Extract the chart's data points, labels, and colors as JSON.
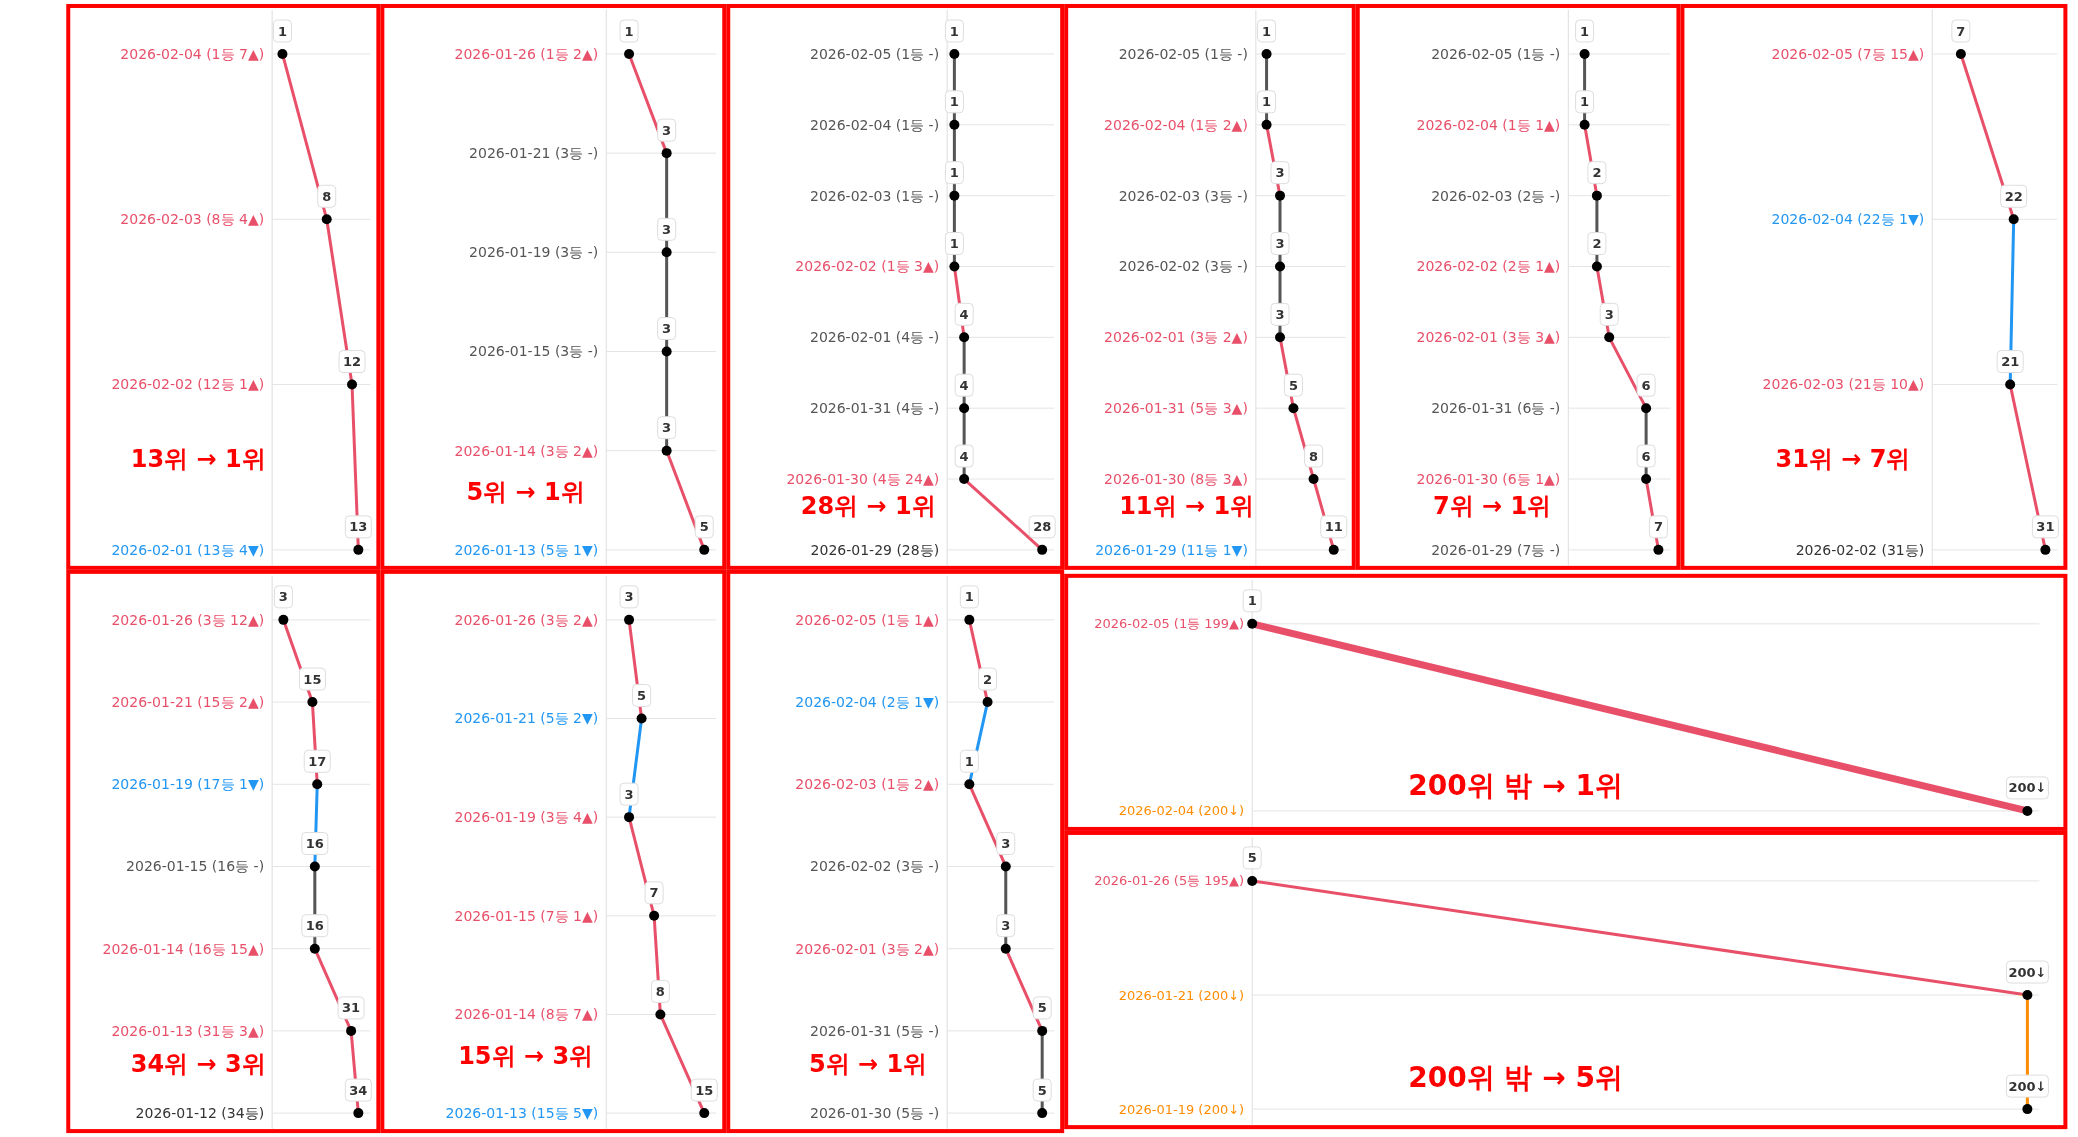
{
  "chart_data": [
    {
      "type": "line",
      "orientation": "horizontal",
      "categories": [
        "2026-02-04 (1등 7▲)",
        "2026-02-03 (8등 4▲)",
        "2026-02-02 (12등 1▲)",
        "2026-02-01 (13등 4▼)"
      ],
      "values": [
        1,
        8,
        12,
        13
      ],
      "colors": [
        "#e8506a",
        "#e8506a",
        "#e8506a",
        "#2196f3"
      ],
      "data_labels": true,
      "marker": "circle",
      "grid": "y",
      "annotations": [
        "13위 → 1위"
      ]
    },
    {
      "type": "line",
      "orientation": "horizontal",
      "categories": [
        "2026-01-26 (1등 2▲)",
        "2026-01-21 (3등 -)",
        "2026-01-19 (3등 -)",
        "2026-01-15 (3등 -)",
        "2026-01-14 (3등 2▲)",
        "2026-01-13 (5등 1▼)"
      ],
      "values": [
        1,
        3,
        3,
        3,
        3,
        5
      ],
      "colors": [
        "#e8506a",
        "#555555",
        "#555555",
        "#555555",
        "#e8506a",
        "#2196f3"
      ],
      "data_labels": true,
      "marker": "circle",
      "grid": "y",
      "annotations": [
        "5위 → 1위"
      ]
    },
    {
      "type": "line",
      "orientation": "horizontal",
      "categories": [
        "2026-02-05 (1등 -)",
        "2026-02-04 (1등 -)",
        "2026-02-03 (1등 -)",
        "2026-02-02 (1등 3▲)",
        "2026-02-01 (4등 -)",
        "2026-01-31 (4등 -)",
        "2026-01-30 (4등 24▲)",
        "2026-01-29 (28등)"
      ],
      "values": [
        1,
        1,
        1,
        1,
        4,
        4,
        4,
        28
      ],
      "colors": [
        "#555555",
        "#555555",
        "#555555",
        "#e8506a",
        "#555555",
        "#555555",
        "#e8506a",
        "#333333"
      ],
      "data_labels": true,
      "marker": "circle",
      "grid": "y",
      "annotations": [
        "28위 → 1위"
      ]
    },
    {
      "type": "line",
      "orientation": "horizontal",
      "categories": [
        "2026-02-05 (1등 -)",
        "2026-02-04 (1등 2▲)",
        "2026-02-03 (3등 -)",
        "2026-02-02 (3등 -)",
        "2026-02-01 (3등 2▲)",
        "2026-01-31 (5등 3▲)",
        "2026-01-30 (8등 3▲)",
        "2026-01-29 (11등 1▼)"
      ],
      "values": [
        1,
        1,
        3,
        3,
        3,
        5,
        8,
        11
      ],
      "colors": [
        "#555555",
        "#e8506a",
        "#555555",
        "#555555",
        "#e8506a",
        "#e8506a",
        "#e8506a",
        "#2196f3"
      ],
      "data_labels": true,
      "marker": "circle",
      "grid": "y",
      "annotations": [
        "11위 → 1위"
      ]
    },
    {
      "type": "line",
      "orientation": "horizontal",
      "categories": [
        "2026-02-05 (1등 -)",
        "2026-02-04 (1등 1▲)",
        "2026-02-03 (2등 -)",
        "2026-02-02 (2등 1▲)",
        "2026-02-01 (3등 3▲)",
        "2026-01-31 (6등 -)",
        "2026-01-30 (6등 1▲)",
        "2026-01-29 (7등 -)"
      ],
      "values": [
        1,
        1,
        2,
        2,
        3,
        6,
        6,
        7
      ],
      "colors": [
        "#555555",
        "#e8506a",
        "#555555",
        "#e8506a",
        "#e8506a",
        "#555555",
        "#e8506a",
        "#555555"
      ],
      "data_labels": true,
      "marker": "circle",
      "grid": "y",
      "annotations": [
        "7위 → 1위"
      ]
    },
    {
      "type": "line",
      "orientation": "horizontal",
      "categories": [
        "2026-02-05 (7등 15▲)",
        "2026-02-04 (22등 1▼)",
        "2026-02-03 (21등 10▲)",
        "2026-02-02 (31등)"
      ],
      "values": [
        7,
        22,
        21,
        31
      ],
      "colors": [
        "#e8506a",
        "#2196f3",
        "#e8506a",
        "#333333"
      ],
      "data_labels": true,
      "marker": "circle",
      "grid": "y",
      "annotations": [
        "31위 → 7위"
      ]
    },
    {
      "type": "line",
      "orientation": "horizontal",
      "categories": [
        "2026-01-26 (3등 12▲)",
        "2026-01-21 (15등 2▲)",
        "2026-01-19 (17등 1▼)",
        "2026-01-15 (16등 -)",
        "2026-01-14 (16등 15▲)",
        "2026-01-13 (31등 3▲)",
        "2026-01-12 (34등)"
      ],
      "values": [
        3,
        15,
        17,
        16,
        16,
        31,
        34
      ],
      "colors": [
        "#e8506a",
        "#e8506a",
        "#2196f3",
        "#555555",
        "#e8506a",
        "#e8506a",
        "#333333"
      ],
      "data_labels": true,
      "marker": "circle",
      "grid": "y",
      "annotations": [
        "34위 → 3위"
      ]
    },
    {
      "type": "line",
      "orientation": "horizontal",
      "categories": [
        "2026-01-26 (3등 2▲)",
        "2026-01-21 (5등 2▼)",
        "2026-01-19 (3등 4▲)",
        "2026-01-15 (7등 1▲)",
        "2026-01-14 (8등 7▲)",
        "2026-01-13 (15등 5▼)"
      ],
      "values": [
        3,
        5,
        3,
        7,
        8,
        15
      ],
      "colors": [
        "#e8506a",
        "#2196f3",
        "#e8506a",
        "#e8506a",
        "#e8506a",
        "#2196f3"
      ],
      "data_labels": true,
      "marker": "circle",
      "grid": "y",
      "annotations": [
        "15위 → 3위"
      ]
    },
    {
      "type": "line",
      "orientation": "horizontal",
      "categories": [
        "2026-02-05 (1등 1▲)",
        "2026-02-04 (2등 1▼)",
        "2026-02-03 (1등 2▲)",
        "2026-02-02 (3등 -)",
        "2026-02-01 (3등 2▲)",
        "2026-01-31 (5등 -)",
        "2026-01-30 (5등 -)"
      ],
      "values": [
        1,
        2,
        1,
        3,
        3,
        5,
        5
      ],
      "colors": [
        "#e8506a",
        "#2196f3",
        "#e8506a",
        "#555555",
        "#e8506a",
        "#555555",
        "#555555"
      ],
      "data_labels": true,
      "marker": "circle",
      "grid": "y",
      "annotations": [
        "5위 → 1위"
      ]
    },
    {
      "type": "line",
      "orientation": "horizontal",
      "categories": [
        "2026-02-05 (1등 199▲)",
        "2026-02-04 (200↓)"
      ],
      "values": [
        1,
        200
      ],
      "colors": [
        "#e8506a",
        "#ff8c00"
      ],
      "value_labels": [
        "1",
        "200↓"
      ],
      "marker": "circle",
      "grid": "y",
      "annotations": [
        "200위 밖 → 1위"
      ]
    },
    {
      "type": "line",
      "orientation": "horizontal",
      "categories": [
        "2026-01-26 (5등 195▲)",
        "2026-01-21 (200↓)",
        "2026-01-19 (200↓)"
      ],
      "values": [
        5,
        200,
        200
      ],
      "colors": [
        "#e8506a",
        "#ff8c00",
        "#ff8c00"
      ],
      "value_labels": [
        "5",
        "200↓",
        "200↓"
      ],
      "marker": "circle",
      "grid": "y",
      "annotations": [
        "200위 밖 → 5위"
      ]
    }
  ]
}
